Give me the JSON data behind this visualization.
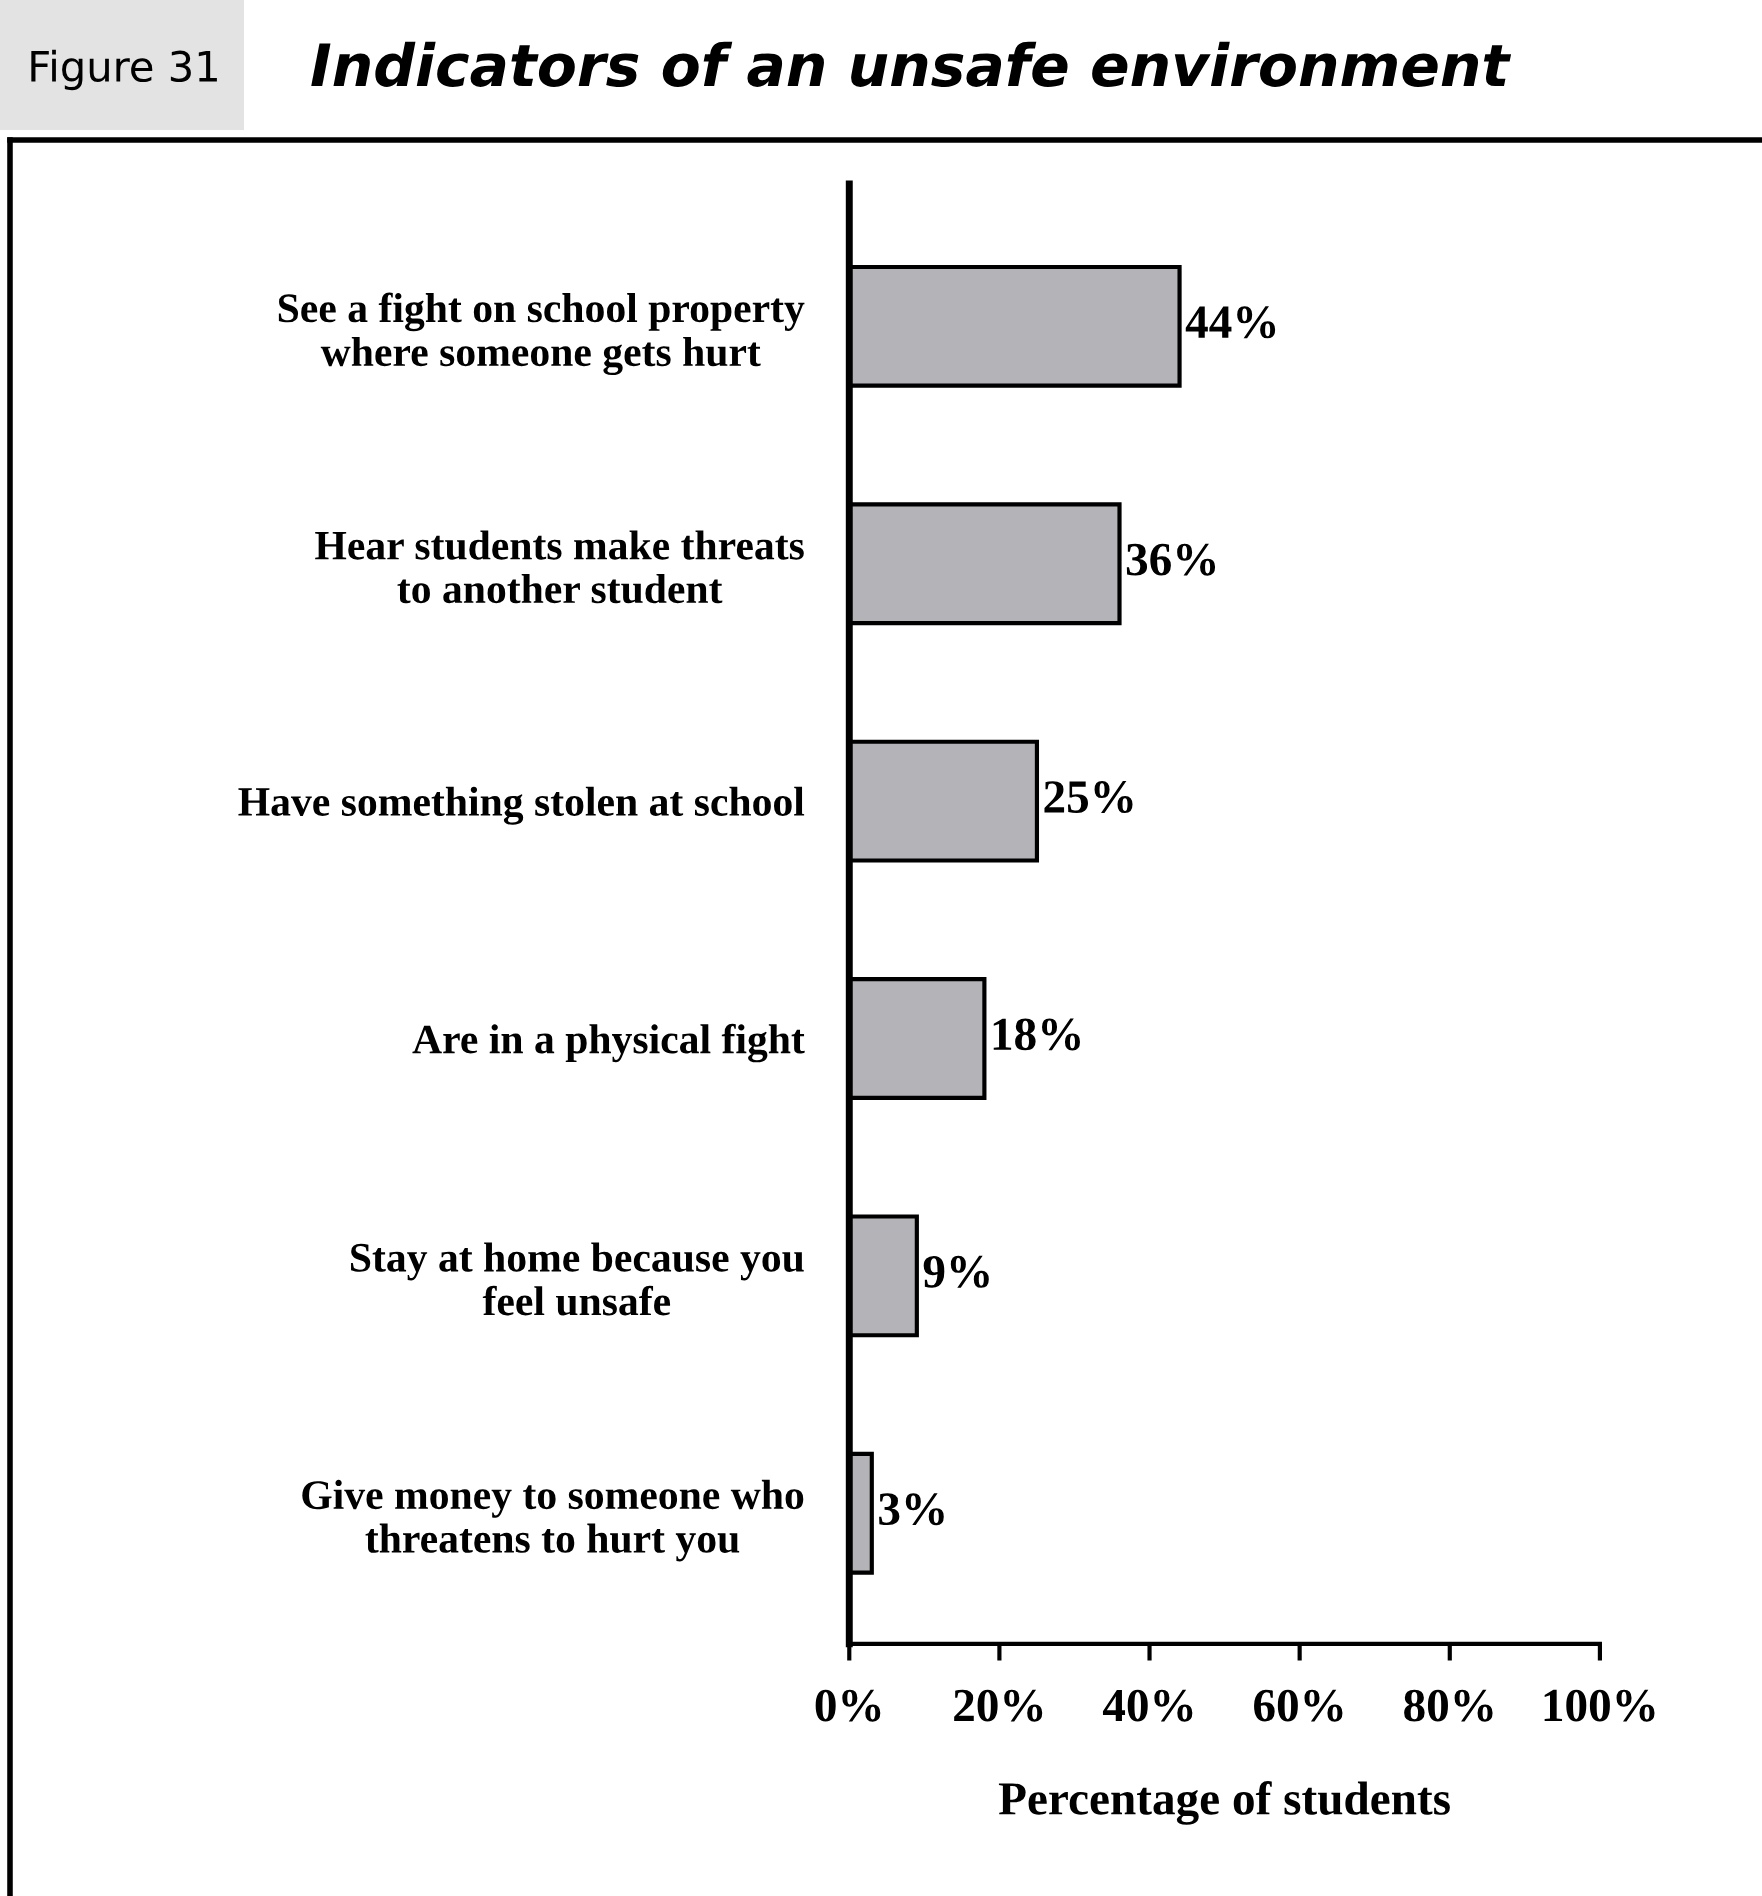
{
  "chart_data": {
    "type": "bar",
    "orientation": "horizontal",
    "title": "Indicators of an unsafe environment",
    "annotations": [
      "Figure 31"
    ],
    "xlabel": "Percentage of students",
    "categories": [
      "See a fight on school property\nwhere someone gets hurt",
      "Hear students make threats\nto another student",
      "Have something stolen at school",
      "Are in a physical fight",
      "Stay at home because you\nfeel unsafe",
      "Give money to someone who\nthreatens to hurt you"
    ],
    "values": [
      44,
      36,
      25,
      18,
      9,
      3
    ],
    "value_labels": [
      "44%",
      "36%",
      "25%",
      "18%",
      "9%",
      "3%"
    ],
    "color": "#b4b4b8",
    "xlim": [
      0,
      100
    ],
    "xticks": [
      {
        "value": 0,
        "label": "0%"
      },
      {
        "value": 20,
        "label": "20%"
      },
      {
        "value": 40,
        "label": "40%"
      },
      {
        "value": 60,
        "label": "60%"
      },
      {
        "value": 80,
        "label": "80%"
      },
      {
        "value": 100,
        "label": "100%"
      }
    ],
    "grid": false,
    "legend": false
  }
}
